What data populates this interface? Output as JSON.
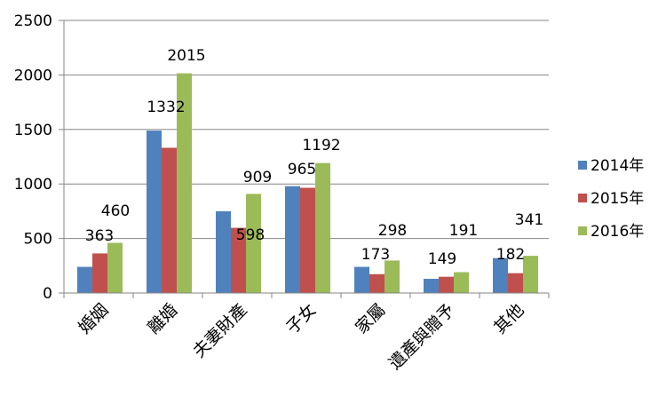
{
  "chart_data": {
    "type": "bar",
    "categories": [
      "婚姻",
      "離婚",
      "夫妻財產",
      "子女",
      "家屬",
      "遺產與贈予",
      "其他"
    ],
    "series": [
      {
        "name": "2014年",
        "color": "#4f81bd",
        "values": [
          240,
          1490,
          750,
          980,
          240,
          130,
          320
        ]
      },
      {
        "name": "2015年",
        "color": "#c0504d",
        "values": [
          363,
          1332,
          598,
          965,
          173,
          149,
          182
        ]
      },
      {
        "name": "2016年",
        "color": "#9bbb59",
        "values": [
          460,
          2015,
          909,
          1192,
          298,
          191,
          341
        ]
      }
    ],
    "data_labels": {
      "2015年": [
        null,
        "1332",
        "598",
        "965",
        "173",
        "149",
        "182"
      ],
      "2016年": [
        "460",
        "2015",
        "909",
        "1192",
        "298",
        "191",
        "341"
      ],
      "extra": [
        {
          "category": "婚姻",
          "text": "363"
        }
      ]
    },
    "y_ticks": [
      0,
      500,
      1000,
      1500,
      2000,
      2500
    ],
    "ylim": [
      0,
      2500
    ],
    "grid": true,
    "legend_position": "right"
  }
}
